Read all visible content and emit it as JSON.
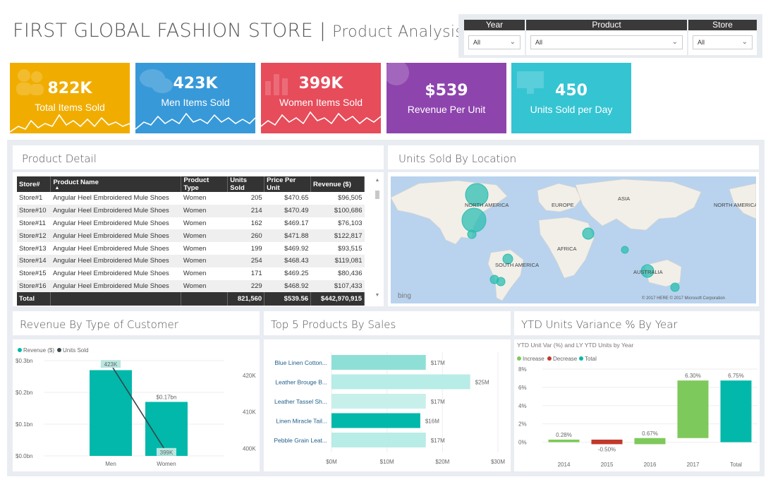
{
  "header": {
    "title": "FIRST GLOBAL FASHION STORE",
    "separator": " | ",
    "subtitle": "Product Analysis"
  },
  "filters": [
    {
      "label": "Year",
      "value": "All"
    },
    {
      "label": "Product",
      "value": "All"
    },
    {
      "label": "Store",
      "value": "All"
    }
  ],
  "kpis": [
    {
      "value": "822K",
      "label": "Total Items Sold",
      "color": "#f0ad00"
    },
    {
      "value": "423K",
      "label": "Men Items Sold",
      "color": "#3899d8"
    },
    {
      "value": "399K",
      "label": "Women Items Sold",
      "color": "#e74c5a"
    },
    {
      "value": "$539",
      "label": "Revenue Per Unit",
      "color": "#8e44ad"
    },
    {
      "value": "450",
      "label": "Units Sold per Day",
      "color": "#35c4d2"
    }
  ],
  "product_detail": {
    "title": "Product Detail",
    "columns": [
      "Store#",
      "Product Name",
      "Product Type",
      "Units Sold",
      "Price Per Unit",
      "Revenue ($)"
    ],
    "rows": [
      [
        "Store#1",
        "Angular Heel Embroidered Mule Shoes",
        "Women",
        "205",
        "$470.65",
        "$96,505"
      ],
      [
        "Store#10",
        "Angular Heel Embroidered Mule Shoes",
        "Women",
        "214",
        "$470.49",
        "$100,686"
      ],
      [
        "Store#11",
        "Angular Heel Embroidered Mule Shoes",
        "Women",
        "162",
        "$469.17",
        "$76,103"
      ],
      [
        "Store#12",
        "Angular Heel Embroidered Mule Shoes",
        "Women",
        "260",
        "$471.88",
        "$122,817"
      ],
      [
        "Store#13",
        "Angular Heel Embroidered Mule Shoes",
        "Women",
        "199",
        "$469.92",
        "$93,515"
      ],
      [
        "Store#14",
        "Angular Heel Embroidered Mule Shoes",
        "Women",
        "254",
        "$468.43",
        "$119,081"
      ],
      [
        "Store#15",
        "Angular Heel Embroidered Mule Shoes",
        "Women",
        "171",
        "$469.25",
        "$80,436"
      ],
      [
        "Store#16",
        "Angular Heel Embroidered Mule Shoes",
        "Women",
        "229",
        "$468.92",
        "$107,433"
      ]
    ],
    "total": {
      "label": "Total",
      "units": "821,560",
      "price": "$539.56",
      "revenue": "$442,970,915"
    }
  },
  "map": {
    "title": "Units Sold By Location",
    "labels": [
      "NORTH AMERICA",
      "EUROPE",
      "ASIA",
      "NORTH AMERICA",
      "AFRICA",
      "SOUTH AMERICA",
      "AUSTRALIA"
    ],
    "credit": "© 2017 HERE   © 2017 Microsoft Corporation",
    "logo": "bing"
  },
  "revenue_chart": {
    "title": "Revenue By Type of Customer",
    "legend": [
      "Revenue ($)",
      "Units Sold"
    ]
  },
  "top5": {
    "title": "Top 5 Products By Sales"
  },
  "ytd": {
    "title": "YTD Units Variance % By Year",
    "subtitle": "YTD Unit Var (%) and LY YTD Units by Year",
    "legend": [
      "Increase",
      "Decrease",
      "Total"
    ]
  },
  "chart_data": [
    {
      "type": "bar",
      "title": "Revenue By Type of Customer",
      "categories": [
        "Men",
        "Women"
      ],
      "series": [
        {
          "name": "Revenue ($)",
          "values": [
            0.27,
            0.17
          ],
          "labels": [
            "$0.27bn",
            "$0.17bn"
          ]
        },
        {
          "name": "Units Sold",
          "values": [
            423,
            399
          ],
          "labels": [
            "423K",
            "399K"
          ]
        }
      ],
      "y_ticks": [
        "$0.0bn",
        "$0.1bn",
        "$0.2bn",
        "$0.3bn"
      ],
      "y2_ticks": [
        "400K",
        "410K",
        "420K"
      ],
      "ylim": [
        0,
        0.3
      ],
      "y2lim": [
        398,
        424
      ]
    },
    {
      "type": "bar",
      "title": "Top 5 Products By Sales",
      "categories": [
        "Blue Linen Cotton...",
        "Leather Brouge B...",
        "Leather Tassel Sh...",
        "Linen Miracle Tail...",
        "Pebble Grain Leat..."
      ],
      "values": [
        17,
        25,
        17,
        16,
        17
      ],
      "labels": [
        "$17M",
        "$25M",
        "$17M",
        "$16M",
        "$17M"
      ],
      "x_ticks": [
        "$0M",
        "$10M",
        "$20M",
        "$30M"
      ],
      "xlim": [
        0,
        30
      ]
    },
    {
      "type": "bar",
      "title": "YTD Units Variance % By Year",
      "categories": [
        "2014",
        "2015",
        "2016",
        "2017",
        "Total"
      ],
      "values": [
        0.28,
        -0.5,
        0.67,
        6.3,
        6.75
      ],
      "labels": [
        "0.28%",
        "-0.50%",
        "0.67%",
        "6.30%",
        "6.75%"
      ],
      "kinds": [
        "Increase",
        "Decrease",
        "Increase",
        "Increase",
        "Total"
      ],
      "y_ticks": [
        "0%",
        "2%",
        "4%",
        "6%",
        "8%"
      ],
      "ylim": [
        -1.5,
        8
      ]
    }
  ]
}
